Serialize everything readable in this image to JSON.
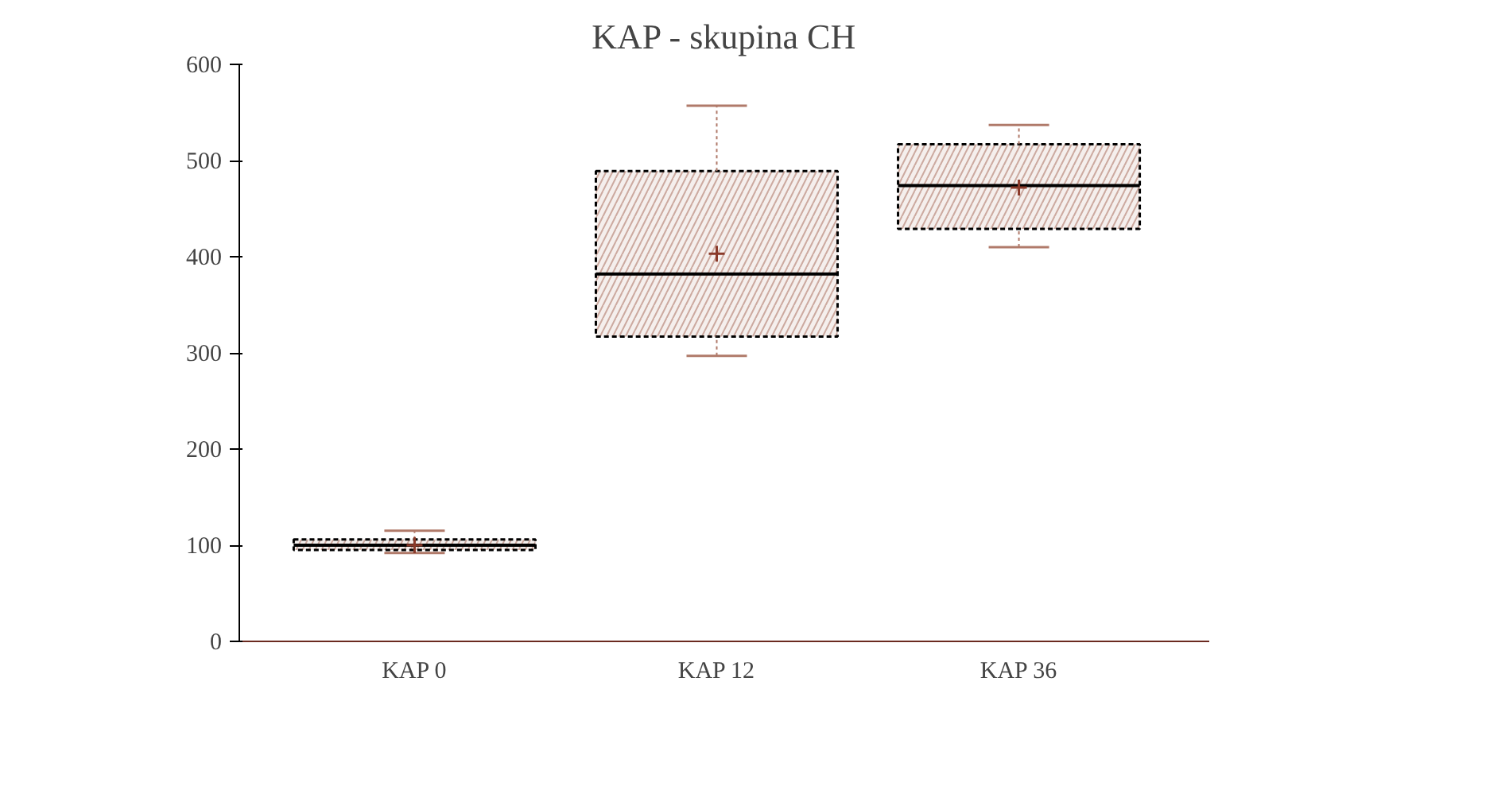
{
  "chart_data": {
    "type": "box",
    "title": "KAP - skupina CH",
    "categories": [
      "KAP 0",
      "KAP 12",
      "KAP 36"
    ],
    "boxes": [
      {
        "low": 92,
        "q1": 95,
        "median": 100,
        "q3": 106,
        "high": 115,
        "mean": 100
      },
      {
        "low": 297,
        "q1": 317,
        "median": 382,
        "q3": 489,
        "high": 557,
        "mean": 403
      },
      {
        "low": 410,
        "q1": 429,
        "median": 474,
        "q3": 517,
        "high": 537,
        "mean": 472
      }
    ],
    "color": "#b07a6a",
    "ylim": [
      0,
      600
    ],
    "yticks": [
      0,
      100,
      200,
      300,
      400,
      500,
      600
    ],
    "grid": false,
    "marker": "cross"
  }
}
